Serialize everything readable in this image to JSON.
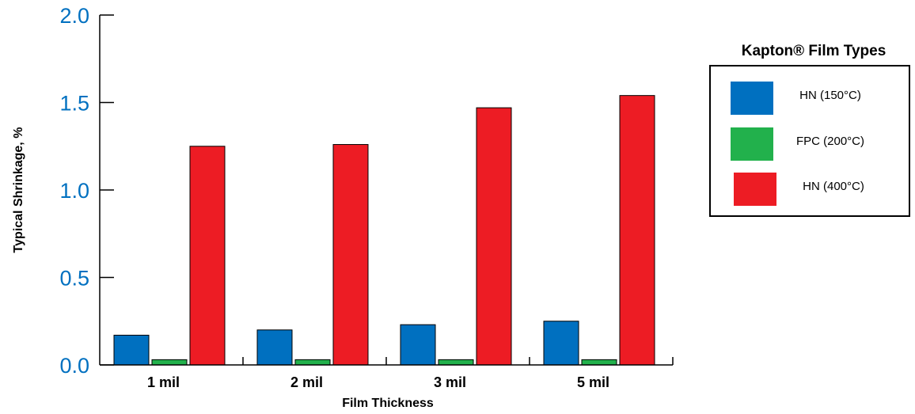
{
  "chart_data": {
    "type": "bar",
    "categories": [
      "1 mil",
      "2 mil",
      "3 mil",
      "5 mil"
    ],
    "series": [
      {
        "name": "HN (150°C)",
        "color": "#0070c0",
        "values": [
          0.17,
          0.2,
          0.23,
          0.25
        ]
      },
      {
        "name": "FPC (200°C)",
        "color": "#22b14c",
        "values": [
          0.03,
          0.03,
          0.03,
          0.03
        ]
      },
      {
        "name": "HN (400°C)",
        "color": "#ed1c24",
        "values": [
          1.25,
          1.26,
          1.47,
          1.54
        ]
      }
    ],
    "xlabel": "Film Thickness",
    "ylabel": "Typical Shrinkage, %",
    "ylim": [
      0,
      2.0
    ],
    "yticks": [
      "0.0",
      "0.5",
      "1.0",
      "1.5",
      "2.0"
    ],
    "ytick_color": "#0070c0",
    "grid": false,
    "legend": {
      "title": "Kapton® Film Types",
      "placement": "right"
    }
  }
}
